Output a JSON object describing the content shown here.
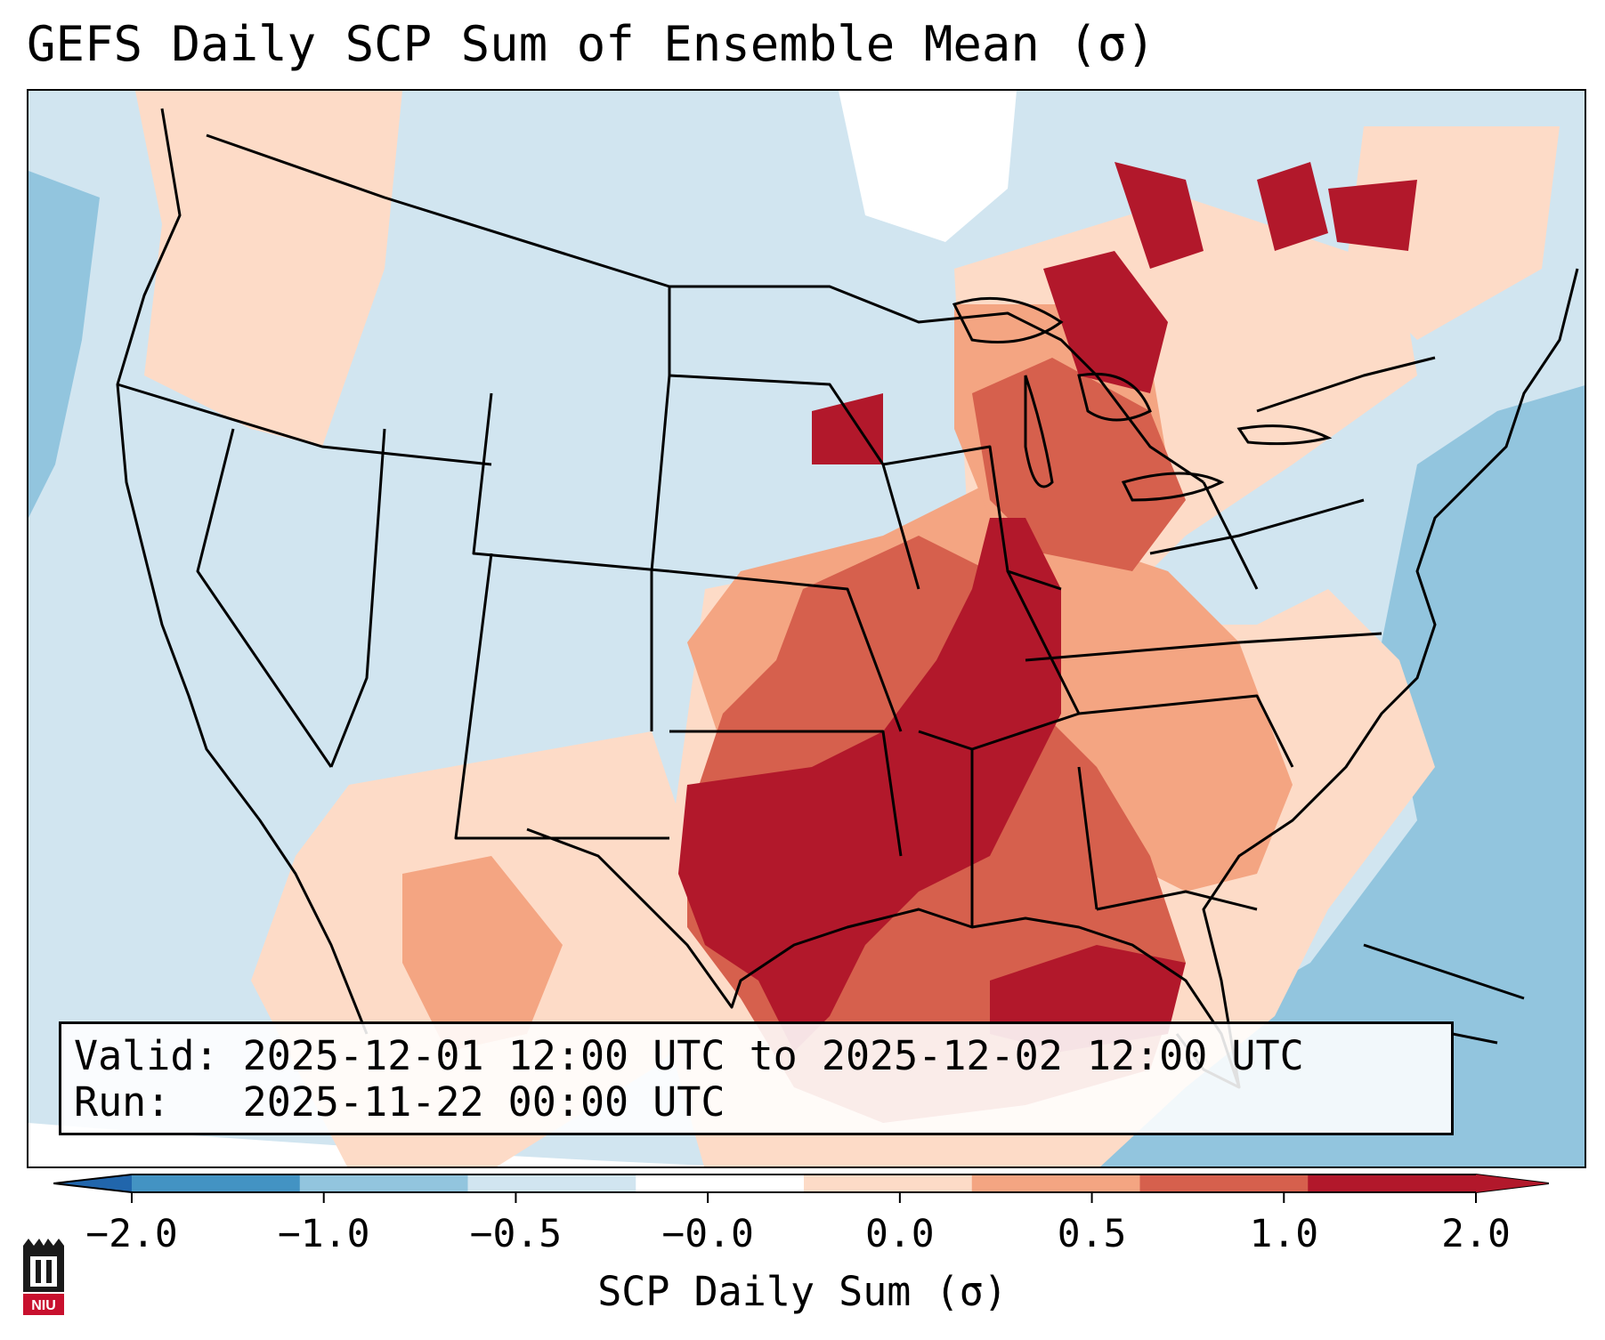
{
  "title": "GEFS Daily SCP Sum of Ensemble Mean (σ)",
  "info": {
    "valid_line": "Valid: 2025-12-01 12:00 UTC to 2025-12-02 12:00 UTC",
    "run_line": "Run:   2025-11-22 00:00 UTC"
  },
  "colorbar": {
    "label": "SCP Daily Sum (σ)",
    "ticks": [
      "−2.0",
      "−1.0",
      "−0.5",
      "−0.0",
      "0.0",
      "0.5",
      "1.0",
      "2.0"
    ],
    "colors": [
      "#4393c3",
      "#92c5de",
      "#d1e5f0",
      "#ffffff",
      "#fddbc7",
      "#f4a582",
      "#d6604d",
      "#b2182b"
    ],
    "extend_low_color": "#2166ac",
    "extend_high_color": "#b2182b"
  },
  "map": {
    "ocean_color": "#92c5de",
    "land_base_color": "#d1e5f0",
    "border_color": "#000000"
  },
  "logo": {
    "text": "NIU"
  }
}
